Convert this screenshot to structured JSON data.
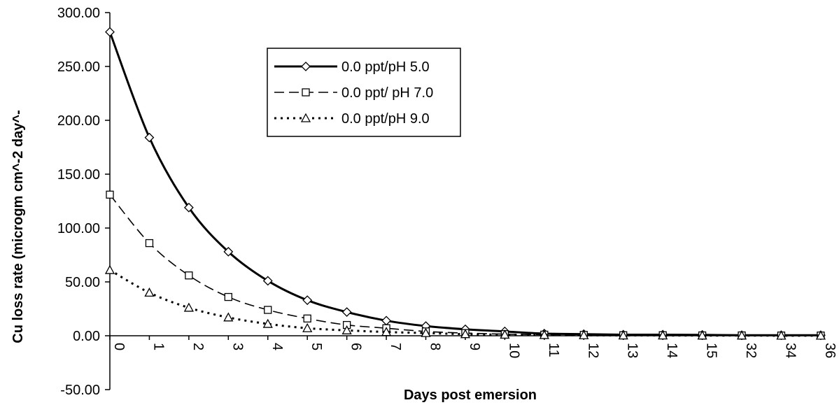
{
  "chart_data": {
    "type": "line",
    "title": "",
    "xlabel": "Days post emersion",
    "ylabel": "Cu loss rate (microgm cm^-2 day^-",
    "ylim": [
      -50,
      300
    ],
    "yticks": [
      "300.00",
      "250.00",
      "200.00",
      "150.00",
      "100.00",
      "50.00",
      "0.00",
      "-50.00"
    ],
    "ytick_values": [
      300,
      250,
      200,
      150,
      100,
      50,
      0,
      -50
    ],
    "categories": [
      "0",
      "1",
      "2",
      "3",
      "4",
      "5",
      "6",
      "7",
      "8",
      "9",
      "10",
      "11",
      "12",
      "13",
      "14",
      "15",
      "32",
      "34",
      "36"
    ],
    "grid": false,
    "legend_position": "top-center",
    "series": [
      {
        "name": "0.0 ppt/pH 5.0",
        "marker": "diamond",
        "line_style": "solid",
        "values": [
          282,
          184,
          119,
          78,
          51,
          33,
          22,
          14,
          9,
          6,
          4,
          2,
          1.5,
          1,
          1,
          0.8,
          0.5,
          0.5,
          0.5
        ]
      },
      {
        "name": "0.0 ppt/ pH 7.0",
        "marker": "square",
        "line_style": "dashed",
        "values": [
          131,
          86,
          56,
          36,
          24,
          16,
          10,
          7,
          4,
          2.5,
          1.5,
          1,
          0.8,
          0.5,
          0.5,
          0.3,
          0.3,
          0.2,
          0.2
        ]
      },
      {
        "name": "0.0 ppt/pH 9.0",
        "marker": "triangle",
        "line_style": "dotted",
        "values": [
          61,
          40,
          26,
          17,
          11,
          7,
          5,
          3.5,
          2.5,
          1.5,
          1,
          0.7,
          0.5,
          0.3,
          0.3,
          0.2,
          0.2,
          0.1,
          0.1
        ]
      }
    ],
    "colors": {
      "line": "#000000",
      "marker_fill": "#ffffff",
      "background": "#ffffff"
    }
  }
}
